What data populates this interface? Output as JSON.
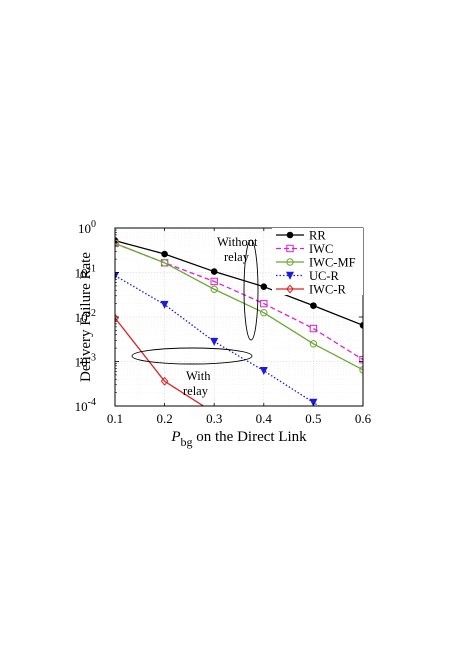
{
  "chart_data": {
    "type": "line",
    "xlabel_main": "P",
    "xlabel_sub": "bg",
    "xlabel_rest": " on the Direct Link",
    "ylabel": "Delivery Failure Rate",
    "xlim": [
      0.1,
      0.6
    ],
    "ylim": [
      0.0001,
      1
    ],
    "yscale": "log",
    "grid": true,
    "legend_position": "top-right",
    "xticks": [
      0.1,
      0.2,
      0.3,
      0.4,
      0.5,
      0.6
    ],
    "xtick_labels": [
      "0.1",
      "0.2",
      "0.3",
      "0.4",
      "0.5",
      "0.6"
    ],
    "yticks": [
      1,
      0.1,
      0.01,
      0.001,
      0.0001
    ],
    "ytick_bases": [
      "10",
      "10",
      "10",
      "10",
      "10"
    ],
    "ytick_exps": [
      "0",
      "-1",
      "-2",
      "-3",
      "-4"
    ],
    "x": [
      0.1,
      0.2,
      0.3,
      0.4,
      0.5,
      0.6
    ],
    "series": [
      {
        "name": "RR",
        "color": "#000000",
        "dash": "solid",
        "marker": "dot",
        "values": [
          0.52,
          0.26,
          0.105,
          0.048,
          0.018,
          0.0065
        ]
      },
      {
        "name": "IWC",
        "color": "#e020d0",
        "dash": "dash",
        "marker": "square",
        "values": [
          0.45,
          0.165,
          0.063,
          0.02,
          0.0055,
          0.0011
        ]
      },
      {
        "name": "IWC-MF",
        "color": "#6aa832",
        "dash": "solid",
        "marker": "circle",
        "values": [
          0.45,
          0.165,
          0.042,
          0.0125,
          0.0025,
          0.00065
        ]
      },
      {
        "name": "UC-R",
        "color": "#1a1ae0",
        "dash": "dot",
        "marker": "triangle-down",
        "values": [
          0.085,
          0.019,
          0.0028,
          0.00062,
          0.00012,
          null
        ]
      },
      {
        "name": "IWC-R",
        "color": "#e02020",
        "dash": "solid",
        "marker": "diamond",
        "values": [
          0.0095,
          0.00036,
          7e-05,
          null,
          null,
          null
        ]
      }
    ],
    "annotations": [
      {
        "line1": "Without",
        "line2": "relay"
      },
      {
        "line1": "With",
        "line2": "relay"
      }
    ]
  }
}
